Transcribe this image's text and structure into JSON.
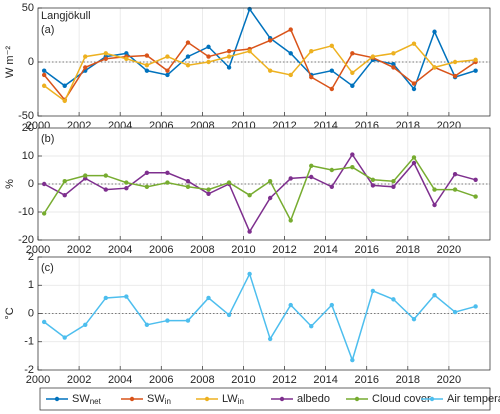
{
  "chart_data": [
    {
      "type": "line",
      "title": "Langjökull",
      "panel_label": "(a)",
      "y_label": "W m⁻²",
      "x": [
        2000.3,
        2001.3,
        2002.3,
        2003.3,
        2004.3,
        2005.3,
        2006.3,
        2007.3,
        2008.3,
        2009.3,
        2010.3,
        2011.3,
        2012.3,
        2013.3,
        2014.3,
        2015.3,
        2016.3,
        2017.3,
        2018.3,
        2019.3,
        2020.3,
        2021.3
      ],
      "xlim": [
        2000,
        2022
      ],
      "xticks": [
        2000,
        2002,
        2004,
        2006,
        2008,
        2010,
        2012,
        2014,
        2016,
        2018,
        2020
      ],
      "ylim": [
        -50,
        50
      ],
      "yticks": [
        -50,
        0,
        50
      ],
      "grid": true,
      "series": [
        {
          "name": "SW",
          "name_sub": "net",
          "color": "#0072bd",
          "values": [
            -8,
            -22,
            -8,
            5,
            8,
            -8,
            -12,
            5,
            14,
            -5,
            49,
            22,
            8,
            -12,
            -8,
            -22,
            2,
            -2,
            -25,
            28,
            -14,
            -8
          ]
        },
        {
          "name": "SW",
          "name_sub": "in",
          "color": "#d95319",
          "values": [
            -12,
            -35,
            -5,
            3,
            5,
            6,
            -8,
            18,
            5,
            10,
            12,
            20,
            30,
            -14,
            -25,
            8,
            4,
            -5,
            -20,
            -5,
            -13,
            0
          ]
        },
        {
          "name": "LW",
          "name_sub": "in",
          "color": "#edb120",
          "values": [
            -22,
            -36,
            5,
            8,
            3,
            -3,
            5,
            -3,
            0,
            5,
            10,
            -8,
            -12,
            10,
            15,
            -10,
            5,
            8,
            17,
            -5,
            0,
            2
          ]
        }
      ]
    },
    {
      "type": "line",
      "panel_label": "(b)",
      "y_label": "%",
      "x": [
        2000.3,
        2001.3,
        2002.3,
        2003.3,
        2004.3,
        2005.3,
        2006.3,
        2007.3,
        2008.3,
        2009.3,
        2010.3,
        2011.3,
        2012.3,
        2013.3,
        2014.3,
        2015.3,
        2016.3,
        2017.3,
        2018.3,
        2019.3,
        2020.3,
        2021.3
      ],
      "xlim": [
        2000,
        2022
      ],
      "xticks": [
        2000,
        2002,
        2004,
        2006,
        2008,
        2010,
        2012,
        2014,
        2016,
        2018,
        2020
      ],
      "ylim": [
        -20,
        20
      ],
      "yticks": [
        -20,
        -10,
        0,
        10,
        20
      ],
      "grid": true,
      "series": [
        {
          "name": "albedo",
          "color": "#7e2f8e",
          "values": [
            0,
            -4,
            2,
            -2,
            -1.5,
            4,
            4,
            1,
            -3.5,
            0,
            -17,
            -5,
            2,
            2.5,
            -1,
            10.5,
            -0.5,
            -1,
            7.5,
            -7.5,
            3.5,
            1.5
          ]
        },
        {
          "name": "Cloud cover",
          "color": "#77ac30",
          "values": [
            -10.5,
            1,
            3,
            3,
            0.5,
            -1,
            0.5,
            -1,
            -2,
            0.5,
            -4,
            1,
            -13,
            6.5,
            5,
            6,
            1.5,
            1,
            9.5,
            -2,
            -2,
            -4.5
          ]
        }
      ]
    },
    {
      "type": "line",
      "panel_label": "(c)",
      "y_label": "°C",
      "x": [
        2000.3,
        2001.3,
        2002.3,
        2003.3,
        2004.3,
        2005.3,
        2006.3,
        2007.3,
        2008.3,
        2009.3,
        2010.3,
        2011.3,
        2012.3,
        2013.3,
        2014.3,
        2015.3,
        2016.3,
        2017.3,
        2018.3,
        2019.3,
        2020.3,
        2021.3
      ],
      "xlim": [
        2000,
        2022
      ],
      "xticks": [
        2000,
        2002,
        2004,
        2006,
        2008,
        2010,
        2012,
        2014,
        2016,
        2018,
        2020
      ],
      "ylim": [
        -2,
        2
      ],
      "yticks": [
        -2,
        -1,
        0,
        1,
        2
      ],
      "grid": true,
      "series": [
        {
          "name": "Air temperature",
          "color": "#4dbeee",
          "values": [
            -0.3,
            -0.85,
            -0.4,
            0.55,
            0.6,
            -0.4,
            -0.25,
            -0.25,
            0.55,
            -0.05,
            1.4,
            -0.9,
            0.3,
            -0.45,
            0.3,
            -1.65,
            0.8,
            0.5,
            -0.2,
            0.65,
            0.05,
            0.25
          ]
        }
      ]
    }
  ]
}
